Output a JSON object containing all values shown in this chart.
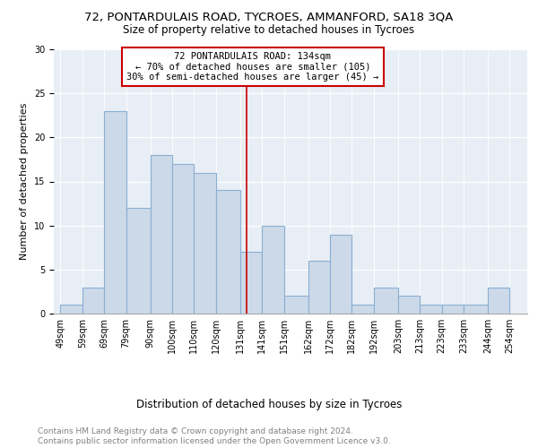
{
  "title": "72, PONTARDULAIS ROAD, TYCROES, AMMANFORD, SA18 3QA",
  "subtitle": "Size of property relative to detached houses in Tycroes",
  "xlabel": "Distribution of detached houses by size in Tycroes",
  "ylabel": "Number of detached properties",
  "footer_line1": "Contains HM Land Registry data © Crown copyright and database right 2024.",
  "footer_line2": "Contains public sector information licensed under the Open Government Licence v3.0.",
  "annotation_line1": "72 PONTARDULAIS ROAD: 134sqm",
  "annotation_line2": "← 70% of detached houses are smaller (105)",
  "annotation_line3": "30% of semi-detached houses are larger (45) →",
  "bar_color": "#ccd9e8",
  "bar_edge_color": "#8aafd4",
  "plot_bg_color": "#e8eef5",
  "ref_line_x": 134,
  "ref_line_color": "#cc0000",
  "bins": [
    49,
    59,
    69,
    79,
    90,
    100,
    110,
    120,
    131,
    141,
    151,
    162,
    172,
    182,
    192,
    203,
    213,
    223,
    233,
    244,
    254
  ],
  "bin_labels": [
    "49sqm",
    "59sqm",
    "69sqm",
    "79sqm",
    "90sqm",
    "100sqm",
    "110sqm",
    "120sqm",
    "131sqm",
    "141sqm",
    "151sqm",
    "162sqm",
    "172sqm",
    "182sqm",
    "192sqm",
    "203sqm",
    "213sqm",
    "223sqm",
    "233sqm",
    "244sqm",
    "254sqm"
  ],
  "counts": [
    1,
    3,
    23,
    12,
    18,
    17,
    16,
    14,
    7,
    10,
    2,
    6,
    9,
    1,
    3,
    2,
    1,
    1,
    1,
    3
  ],
  "ylim": [
    0,
    30
  ],
  "yticks": [
    0,
    5,
    10,
    15,
    20,
    25,
    30
  ],
  "annotation_box_edge_color": "#cc0000",
  "annotation_box_face_color": "white",
  "title_fontsize": 9.5,
  "subtitle_fontsize": 8.5,
  "axis_label_fontsize": 8,
  "tick_fontsize": 7,
  "annotation_fontsize": 7.5,
  "footer_fontsize": 6.5,
  "xlabel_fontsize": 8.5
}
